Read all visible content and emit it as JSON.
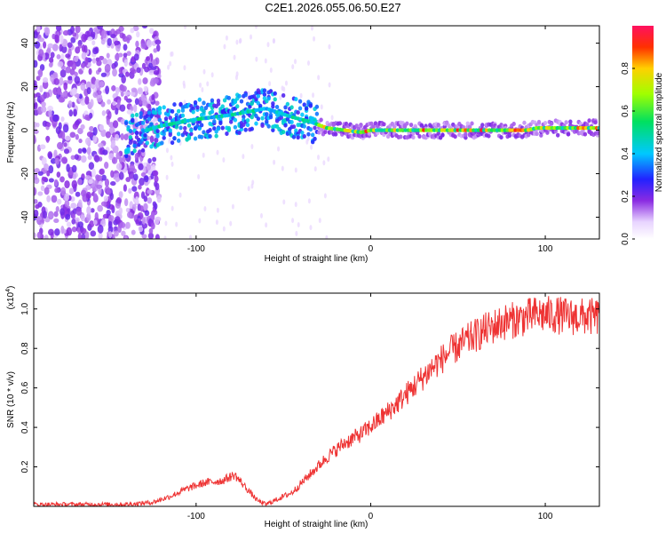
{
  "title": "C2E1.2026.055.06.50.E27",
  "chart_data": [
    {
      "type": "heatmap",
      "title": "C2E1.2026.055.06.50.E27",
      "xlabel": "Height of straight line (km)",
      "ylabel": "Frequency (Hz)",
      "xlim": [
        -193,
        131
      ],
      "ylim": [
        -50,
        48
      ],
      "xticks": [
        -100,
        0,
        100
      ],
      "yticks": [
        -40,
        -20,
        0,
        20,
        40
      ],
      "colorbar": {
        "label": "Normalized spectral amplitude",
        "range": [
          0,
          1
        ],
        "ticks": [
          0.0,
          0.2,
          0.4,
          0.6,
          0.8
        ],
        "tick_labels": [
          "0.0",
          "0.2",
          "0.4",
          "0.6",
          "0.8"
        ]
      },
      "ridge": {
        "description": "dominant frequency track",
        "x": [
          -140,
          -120,
          -100,
          -80,
          -60,
          -45,
          -35,
          -25,
          -15,
          -5,
          0,
          20,
          40,
          60,
          80,
          90,
          95,
          110,
          131
        ],
        "y": [
          -3,
          2,
          5,
          7,
          10,
          6,
          4,
          1,
          0,
          -1,
          0,
          0,
          0,
          0,
          0,
          0,
          1,
          1,
          1
        ]
      }
    },
    {
      "type": "line",
      "xlabel": "Height of straight line (km)",
      "ylabel": "SNR (10 * v/v)",
      "scale_note": "(x10",
      "scale_exp": "4",
      "xlim": [
        -193,
        131
      ],
      "ylim": [
        0,
        1.08
      ],
      "xticks": [
        -100,
        0,
        100
      ],
      "yticks": [
        0.2,
        0.4,
        0.6,
        0.8,
        1.0
      ],
      "series": [
        {
          "name": "SNR",
          "color": "#ee3333",
          "x": [
            -193,
            -170,
            -140,
            -125,
            -115,
            -105,
            -95,
            -85,
            -78,
            -72,
            -65,
            -60,
            -55,
            -45,
            -35,
            -25,
            -15,
            -5,
            5,
            15,
            25,
            35,
            45,
            55,
            65,
            75,
            85,
            95,
            105,
            115,
            131
          ],
          "y": [
            0.01,
            0.01,
            0.01,
            0.02,
            0.05,
            0.09,
            0.12,
            0.13,
            0.16,
            0.1,
            0.03,
            0.01,
            0.03,
            0.07,
            0.16,
            0.25,
            0.32,
            0.37,
            0.44,
            0.52,
            0.61,
            0.7,
            0.78,
            0.84,
            0.89,
            0.93,
            0.95,
            0.97,
            0.97,
            0.96,
            0.96
          ]
        }
      ]
    }
  ],
  "ticks": {
    "top_x": [
      "-100",
      "0",
      "100"
    ],
    "top_y": [
      "-40",
      "-20",
      "0",
      "20",
      "40"
    ],
    "bottom_x": [
      "-100",
      "0",
      "100"
    ],
    "bottom_y": [
      "0.2",
      "0.4",
      "0.6",
      "0.8",
      "1.0"
    ]
  }
}
